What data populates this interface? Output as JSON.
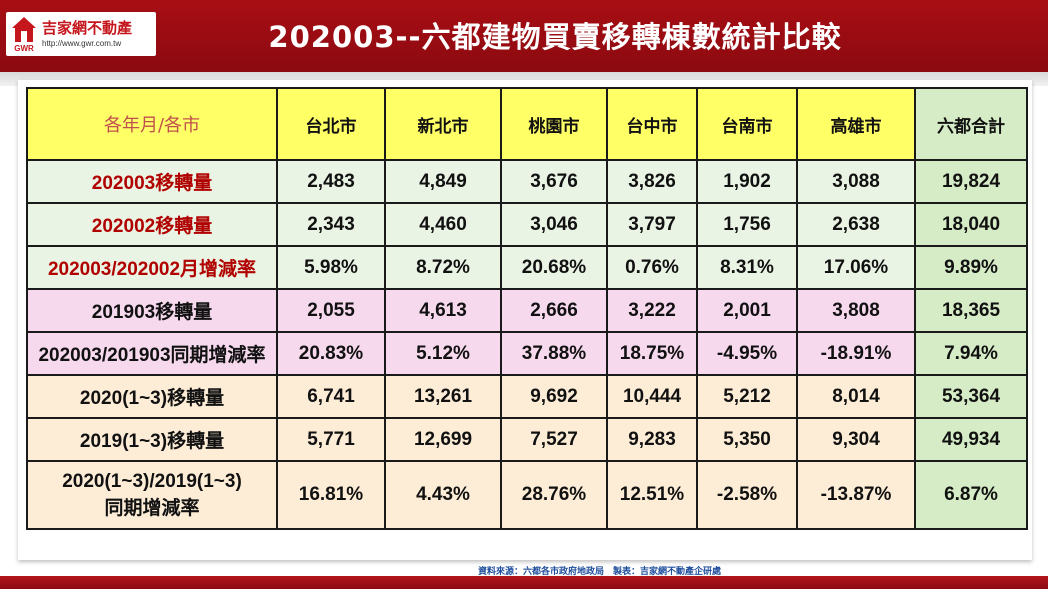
{
  "header": {
    "logo_name": "吉家網不動產",
    "logo_mark": "GWR",
    "logo_url": "http://www.gwr.com.tw",
    "title": "202003--六都建物買賣移轉棟數統計比較"
  },
  "table": {
    "columns": [
      "各年月/各市",
      "台北市",
      "新北市",
      "桃園市",
      "台中市",
      "台南市",
      "高雄市",
      "六都合計"
    ],
    "rows": [
      {
        "label": "202003移轉量",
        "values": [
          "2,483",
          "4,849",
          "3,676",
          "3,826",
          "1,902",
          "3,088",
          "19,824"
        ]
      },
      {
        "label": "202002移轉量",
        "values": [
          "2,343",
          "4,460",
          "3,046",
          "3,797",
          "1,756",
          "2,638",
          "18,040"
        ]
      },
      {
        "label": "202003/202002月增減率",
        "values": [
          "5.98%",
          "8.72%",
          "20.68%",
          "0.76%",
          "8.31%",
          "17.06%",
          "9.89%"
        ]
      },
      {
        "label": "201903移轉量",
        "values": [
          "2,055",
          "4,613",
          "2,666",
          "3,222",
          "2,001",
          "3,808",
          "18,365"
        ]
      },
      {
        "label": "202003/201903同期增減率",
        "values": [
          "20.83%",
          "5.12%",
          "37.88%",
          "18.75%",
          "-4.95%",
          "-18.91%",
          "7.94%"
        ]
      },
      {
        "label": "2020(1~3)移轉量",
        "values": [
          "6,741",
          "13,261",
          "9,692",
          "10,444",
          "5,212",
          "8,014",
          "53,364"
        ]
      },
      {
        "label": "2019(1~3)移轉量",
        "values": [
          "5,771",
          "12,699",
          "7,527",
          "9,283",
          "5,350",
          "9,304",
          "49,934"
        ]
      },
      {
        "label_line1": "2020(1~3)/2019(1~3)",
        "label_line2": "同期增減率",
        "values": [
          "16.81%",
          "4.43%",
          "28.76%",
          "12.51%",
          "-2.58%",
          "-13.87%",
          "6.87%"
        ]
      }
    ]
  },
  "source": "資料來源：六都各市政府地政局　製表：吉家網不動產企研處",
  "colors": {
    "header_red": "#a80e14",
    "header_yellow": "#ffff66",
    "total_green": "#d6ecc7",
    "positive_blue": "#1f6fbf",
    "negative_red": "#e3111a",
    "label_red": "#b00000"
  }
}
